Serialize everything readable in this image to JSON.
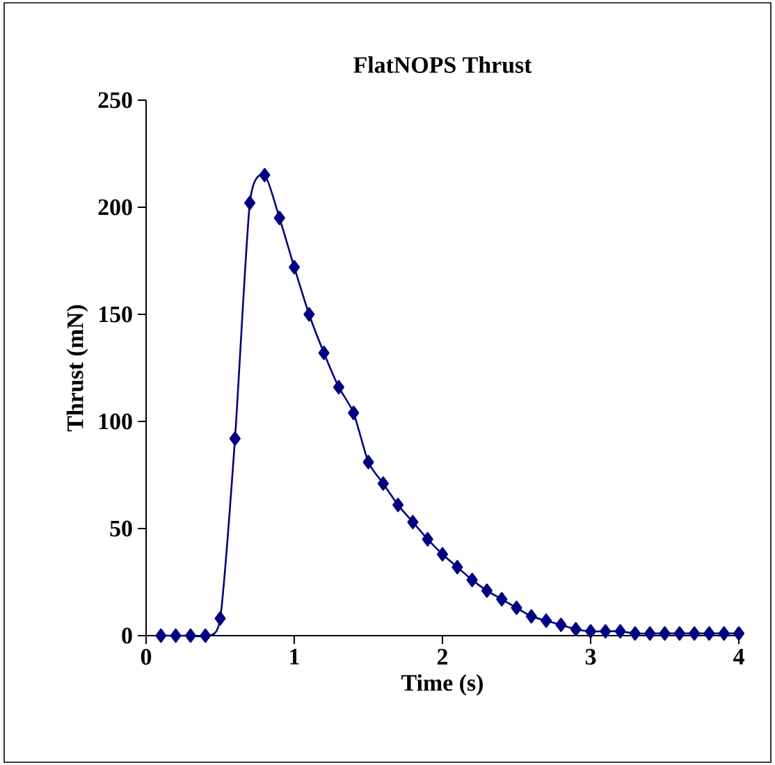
{
  "chart_data": {
    "type": "line",
    "title": "FlatNOPS Thrust",
    "xlabel": "Time (s)",
    "ylabel": "Thrust (mN)",
    "x": [
      0.1,
      0.2,
      0.3,
      0.4,
      0.5,
      0.6,
      0.7,
      0.8,
      0.9,
      1.0,
      1.1,
      1.2,
      1.3,
      1.4,
      1.5,
      1.6,
      1.7,
      1.8,
      1.9,
      2.0,
      2.1,
      2.2,
      2.3,
      2.4,
      2.5,
      2.6,
      2.7,
      2.8,
      2.9,
      3.0,
      3.1,
      3.2,
      3.3,
      3.4,
      3.5,
      3.6,
      3.7,
      3.8,
      3.9,
      4.0
    ],
    "series": [
      {
        "color": "#000080",
        "values": [
          0,
          0,
          0,
          0,
          8,
          92,
          202,
          215,
          195,
          172,
          150,
          132,
          116,
          104,
          81,
          71,
          61,
          53,
          45,
          38,
          32,
          26,
          21,
          17,
          13,
          9,
          7,
          5,
          3,
          2,
          2,
          2,
          1,
          1,
          1,
          1,
          1,
          1,
          1,
          1
        ]
      }
    ],
    "xlim": [
      0,
      4
    ],
    "ylim": [
      0,
      250
    ],
    "xticks": [
      0,
      1,
      2,
      3,
      4
    ],
    "yticks": [
      0,
      50,
      100,
      150,
      200,
      250
    ],
    "marker": "diamond",
    "line_style": "solid",
    "grid": false
  }
}
